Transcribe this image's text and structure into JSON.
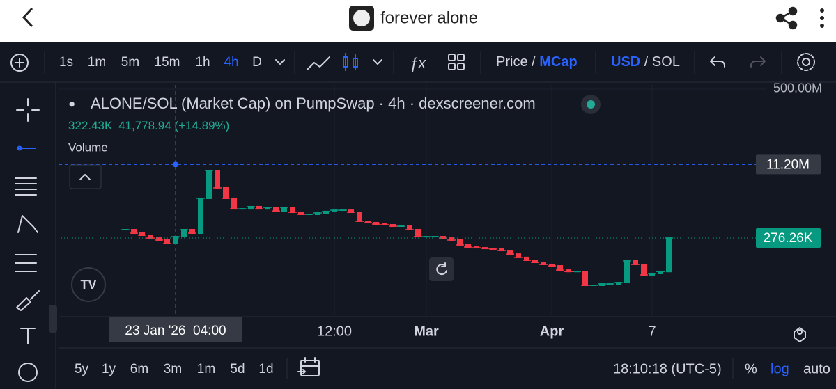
{
  "header": {
    "title": "forever alone"
  },
  "toolbar": {
    "intervals": [
      "1s",
      "1m",
      "5m",
      "15m",
      "1h",
      "4h",
      "D"
    ],
    "active_interval": "4h",
    "price": "Price",
    "price_sep": "/",
    "mcap": "MCap",
    "usd": "USD",
    "currency_sep": "/",
    "sol": "SOL"
  },
  "legend": {
    "title": "ALONE/SOL (Market Cap) on PumpSwap · 4h · dexscreener.com",
    "last": "322.43K",
    "change": "41,778.94 (+14.89%)",
    "volume": "Volume"
  },
  "chart_data": {
    "type": "line",
    "log_scale": true,
    "categories": [
      null,
      null,
      null,
      null,
      null,
      null,
      "23 Jan '26  04:00",
      null,
      null,
      null,
      null,
      null,
      null,
      null,
      null,
      null,
      null,
      null,
      null,
      null,
      null,
      null,
      null,
      null,
      null,
      "12:00",
      null,
      null,
      null,
      null,
      null,
      null,
      null,
      null,
      null,
      null,
      "Mar",
      null,
      null,
      null,
      null,
      null,
      null,
      null,
      null,
      null,
      null,
      null,
      null,
      null,
      null,
      "Apr",
      null,
      null,
      null,
      null,
      null,
      null,
      null,
      null,
      null,
      null,
      null,
      "7",
      null,
      null
    ],
    "values": [
      421000,
      353000,
      318000,
      276000,
      249000,
      209000,
      296000,
      421000,
      353000,
      2040000,
      8270000,
      3450000,
      2040000,
      1200000,
      1200000,
      1340000,
      1200000,
      1290000,
      1080000,
      1290000,
      1010000,
      910000,
      910000,
      975000,
      1050000,
      1120000,
      1120000,
      1010000,
      641000,
      597000,
      557000,
      538000,
      501000,
      501000,
      421000,
      296000,
      296000,
      296000,
      276000,
      249000,
      195000,
      175000,
      169000,
      163000,
      158000,
      147000,
      123000,
      104000,
      90000,
      81000,
      73000,
      68000,
      55000,
      51000,
      51000,
      25500,
      25500,
      27300,
      27300,
      29300,
      87000,
      73000,
      43100,
      46300,
      51000,
      276000
    ],
    "up_color": "#089981",
    "down_color": "#f23645",
    "ylim": [
      5850,
      617000000
    ],
    "yticks": [
      {
        "value": 500000000,
        "label": "500.00M"
      }
    ],
    "crosshair": {
      "x": "23 Jan '26  04:00",
      "y": {
        "value": 11200000,
        "label": "11.20M"
      }
    },
    "last_value": {
      "value": 276260,
      "label": "276.26K"
    }
  },
  "bottom": {
    "ranges": [
      "5y",
      "1y",
      "6m",
      "3m",
      "1m",
      "5d",
      "1d"
    ],
    "time": "18:10:18 (UTC-5)",
    "percent": "%",
    "log": "log",
    "auto": "auto"
  }
}
